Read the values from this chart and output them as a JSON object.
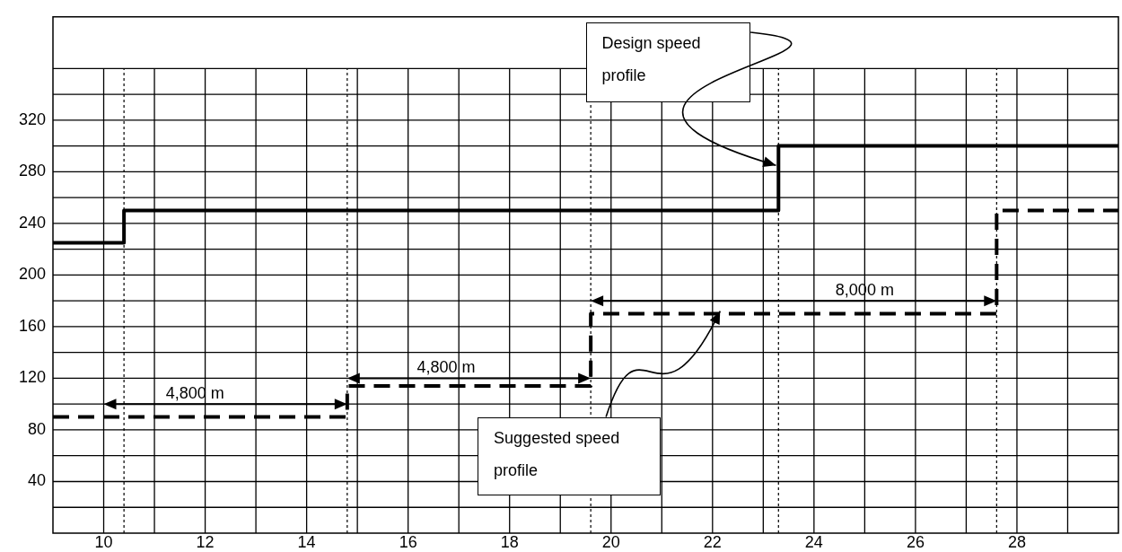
{
  "chart_data": {
    "type": "step",
    "xlim": [
      9,
      30
    ],
    "ylim": [
      0,
      400
    ],
    "xticks": [
      10,
      {
        "value": 11,
        "label": null
      },
      12,
      {
        "value": 13,
        "label": null
      },
      14,
      {
        "value": 15,
        "label": null
      },
      16,
      {
        "value": 17,
        "label": null
      },
      18,
      {
        "value": 19,
        "label": null
      },
      20,
      {
        "value": 21,
        "label": null
      },
      22,
      {
        "value": 23,
        "label": null
      },
      24,
      {
        "value": 25,
        "label": null
      },
      26,
      {
        "value": 27,
        "label": null
      },
      28,
      {
        "value": 29,
        "label": null
      }
    ],
    "yticks": [
      {
        "value": 20,
        "label": null
      },
      40,
      {
        "value": 60,
        "label": null
      },
      80,
      {
        "value": 100,
        "label": null
      },
      120,
      {
        "value": 140,
        "label": null
      },
      160,
      {
        "value": 180,
        "label": null
      },
      200,
      {
        "value": 220,
        "label": null
      },
      240,
      {
        "value": 260,
        "label": null
      },
      280,
      {
        "value": 300,
        "label": null
      },
      320,
      {
        "value": 340,
        "label": null
      },
      {
        "value": 360,
        "label": null
      }
    ],
    "grid": true,
    "legend": false,
    "marker": "none",
    "series": [
      {
        "color": "#000000",
        "line_style": "solid",
        "x": [
          9,
          10.4,
          23.3,
          30
        ],
        "values": [
          225,
          250,
          300,
          300
        ]
      },
      {
        "color": "#000000",
        "line_style": "dashed",
        "x": [
          9,
          14.8,
          19.6,
          27.6,
          30
        ],
        "values": [
          90,
          114,
          170,
          250,
          250
        ]
      }
    ],
    "ref_lines": [
      {
        "axis": "x",
        "value": 10.4,
        "line_style": "dotted",
        "color": "#000000"
      },
      {
        "axis": "x",
        "value": 14.8,
        "line_style": "dotted",
        "color": "#000000"
      },
      {
        "axis": "x",
        "value": 19.6,
        "line_style": "dotted",
        "color": "#000000"
      },
      {
        "axis": "x",
        "value": 23.3,
        "line_style": "dotted",
        "color": "#000000"
      },
      {
        "axis": "x",
        "value": 27.6,
        "line_style": "dotted",
        "color": "#000000"
      }
    ],
    "annotations": [
      "4,800 m",
      "4,800 m",
      "8,000 m",
      "Design speed profile",
      {
        "text": "Suggested speed profile",
        "x": 22.2,
        "y": 170
      }
    ]
  }
}
